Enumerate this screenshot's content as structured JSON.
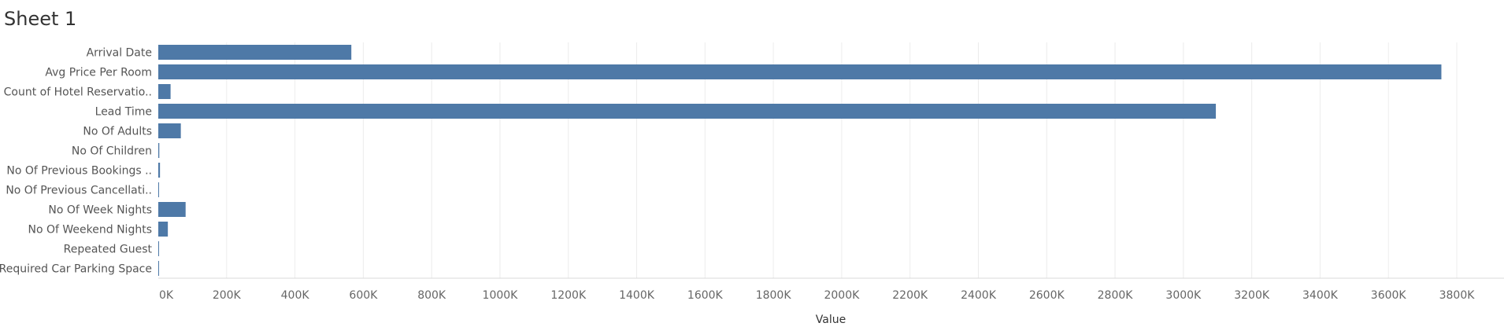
{
  "sheet": {
    "title": "Sheet 1"
  },
  "chart_data": {
    "type": "bar",
    "orientation": "horizontal",
    "categories": [
      "Arrival Date",
      "Avg Price Per Room",
      "Count of Hotel Reservatio..",
      "Lead Time",
      "No Of Adults",
      "No Of Children",
      "No Of Previous Bookings ..",
      "No Of Previous Cancellati..",
      "No Of Week Nights",
      "No Of Weekend Nights",
      "Repeated Guest",
      "Required Car Parking Space"
    ],
    "values": [
      565000,
      3755000,
      36000,
      3095000,
      66000,
      3000,
      5000,
      1000,
      80000,
      28000,
      1000,
      1000
    ],
    "xlabel": "Value",
    "ylabel": "",
    "xlim": [
      0,
      3800000
    ],
    "ticks": [
      0,
      200000,
      400000,
      600000,
      800000,
      1000000,
      1200000,
      1400000,
      1600000,
      1800000,
      2000000,
      2200000,
      2400000,
      2600000,
      2800000,
      3000000,
      3200000,
      3400000,
      3600000,
      3800000
    ],
    "tick_labels": [
      "0K",
      "200K",
      "400K",
      "600K",
      "800K",
      "1000K",
      "1200K",
      "1400K",
      "1600K",
      "1800K",
      "2000K",
      "2200K",
      "2400K",
      "2600K",
      "2800K",
      "3000K",
      "3200K",
      "3400K",
      "3600K",
      "3800K"
    ],
    "grid": true,
    "bar_color": "#4e79a7"
  }
}
